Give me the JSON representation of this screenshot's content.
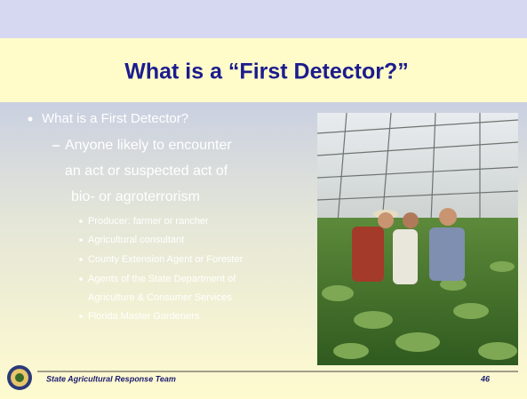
{
  "slide": {
    "title": "What is a “First Detector?”",
    "bullet": "What is a First Detector?",
    "sub_bullet_lines": [
      "Anyone likely to encounter",
      "an act or suspected act of",
      "bio- or agroterrorism"
    ],
    "items": [
      [
        "Producer: farmer or rancher"
      ],
      [
        "Agricultural consultant"
      ],
      [
        "County Extension Agent or Forester"
      ],
      [
        "Agents of the State Department of",
        "Agriculture & Consumer Services"
      ],
      [
        "Florida Master Gardeners"
      ]
    ]
  },
  "footer": {
    "organization": "State Agricultural Response Team",
    "page": "46"
  }
}
